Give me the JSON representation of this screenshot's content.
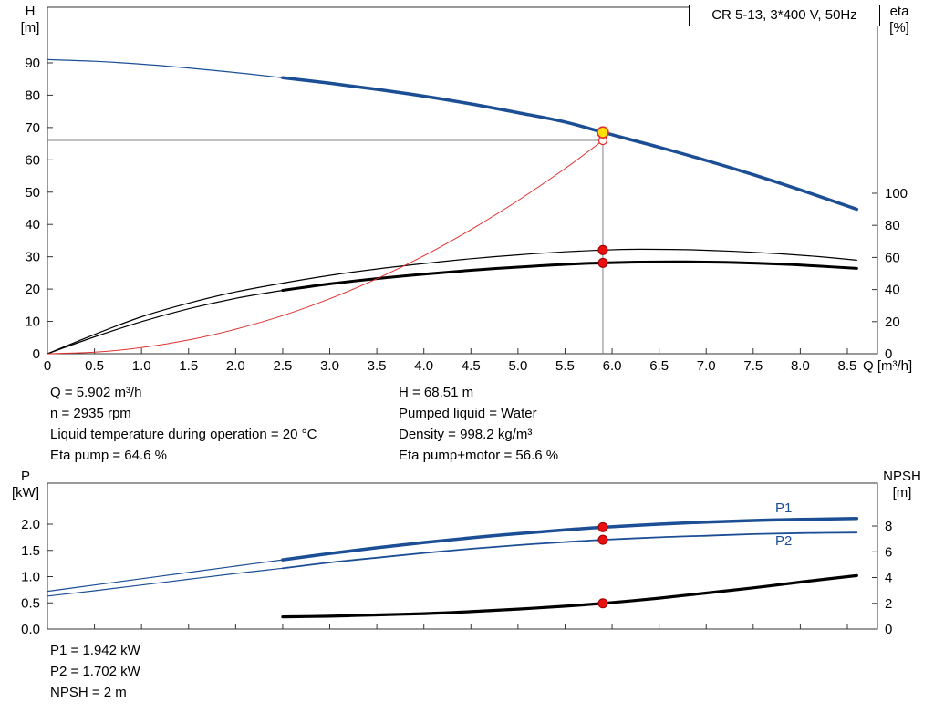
{
  "title_box": {
    "text": "CR 5-13, 3*400 V, 50Hz"
  },
  "labels": {
    "top_left_axis": [
      "H",
      "[m]"
    ],
    "top_right_axis": [
      "eta",
      "[%]"
    ],
    "x_axis": "Q [m³/h]",
    "bottom_left_axis": [
      "P",
      "[kW]"
    ],
    "bottom_right_axis": [
      "NPSH",
      "[m]"
    ],
    "p1": "P1",
    "p2": "P2"
  },
  "readout": {
    "top_left": [
      "Q = 5.902 m³/h",
      "n = 2935 rpm",
      "Liquid temperature during operation = 20 °C",
      "Eta pump = 64.6 %"
    ],
    "top_right": [
      "H = 68.51 m",
      "Pumped liquid = Water",
      "Density = 998.2 kg/m³",
      "Eta pump+motor = 56.6 %"
    ],
    "bottom": [
      "P1 = 1.942 kW",
      "P2 = 1.702 kW",
      "NPSH = 2 m"
    ]
  },
  "colors": {
    "curve_blue": "#1b4e94",
    "curve_black": "#000000",
    "load_red": "#e03030",
    "dot_red": "#e81010",
    "duty_yellow": "#ffe000",
    "crosshair_gray": "#808080"
  },
  "chart_data": [
    {
      "type": "line",
      "title": "CR 5-13, 3*400 V, 50Hz",
      "xlabel": "Q [m³/h]",
      "ylabel_left": "H [m]",
      "ylabel_right": "eta [%]",
      "xlim": [
        0,
        8.82
      ],
      "ylim_left": [
        0,
        107.2
      ],
      "ylim_right": [
        0,
        215.9
      ],
      "x_ticks": [
        0,
        0.5,
        1,
        1.5,
        2,
        2.5,
        3,
        3.5,
        4,
        4.5,
        5,
        5.5,
        6,
        6.5,
        7,
        7.5,
        8,
        8.5
      ],
      "x_tick_labels": [
        "0",
        "0.5",
        "1.0",
        "1.5",
        "2.0",
        "2.5",
        "3.0",
        "3.5",
        "4.0",
        "4.5",
        "5.0",
        "5.5",
        "6.0",
        "6.5",
        "7.0",
        "7.5",
        "8.0",
        "8.5"
      ],
      "y_left_ticks": [
        0,
        10,
        20,
        30,
        40,
        50,
        60,
        70,
        80,
        90
      ],
      "y_right_ticks": [
        0,
        20,
        40,
        60,
        80,
        100
      ],
      "grid": false,
      "series": [
        {
          "name": "head-curve-thin",
          "axis": "left",
          "color": "#1b4e94",
          "width": 1.2,
          "points": [
            [
              0,
              91
            ],
            [
              0.5,
              90.5
            ],
            [
              1,
              89.6
            ],
            [
              1.5,
              88.4
            ],
            [
              2,
              87
            ],
            [
              2.5,
              85.4
            ]
          ]
        },
        {
          "name": "head-curve",
          "axis": "left",
          "color": "#1b4e94",
          "width": 3.5,
          "points": [
            [
              2.5,
              85.4
            ],
            [
              3,
              83.7
            ],
            [
              3.5,
              81.8
            ],
            [
              4,
              79.7
            ],
            [
              4.5,
              77.3
            ],
            [
              5,
              74.6
            ],
            [
              5.5,
              71.7
            ],
            [
              5.902,
              68.51
            ],
            [
              6.5,
              63.9
            ],
            [
              7,
              59.8
            ],
            [
              7.5,
              55.4
            ],
            [
              8,
              50.7
            ],
            [
              8.6,
              44.7
            ]
          ]
        },
        {
          "name": "eta-pump-curve",
          "axis": "right",
          "color": "#000000",
          "width": 1.2,
          "points": [
            [
              0,
              0
            ],
            [
              0.5,
              12
            ],
            [
              1,
              23
            ],
            [
              1.5,
              31.5
            ],
            [
              2,
              38.5
            ],
            [
              2.5,
              44
            ],
            [
              3,
              48.8
            ],
            [
              3.5,
              52.8
            ],
            [
              4,
              56.2
            ],
            [
              4.5,
              59.2
            ],
            [
              5,
              61.6
            ],
            [
              5.5,
              63.5
            ],
            [
              5.902,
              64.6
            ],
            [
              6.3,
              65.1
            ],
            [
              6.8,
              64.8
            ],
            [
              7.3,
              63.8
            ],
            [
              7.8,
              62.2
            ],
            [
              8.2,
              60.5
            ],
            [
              8.6,
              58.3
            ]
          ]
        },
        {
          "name": "eta-pump-motor-thin",
          "axis": "right",
          "color": "#000000",
          "width": 1.2,
          "points": [
            [
              0,
              0
            ],
            [
              0.5,
              10.5
            ],
            [
              1,
              20
            ],
            [
              1.5,
              28
            ],
            [
              2,
              34.5
            ],
            [
              2.5,
              39.5
            ]
          ]
        },
        {
          "name": "eta-pump-motor-curve",
          "axis": "right",
          "color": "#000000",
          "width": 3,
          "points": [
            [
              2.5,
              39.5
            ],
            [
              3,
              43.5
            ],
            [
              3.5,
              46.8
            ],
            [
              4,
              49.6
            ],
            [
              4.5,
              52
            ],
            [
              5,
              54
            ],
            [
              5.5,
              55.7
            ],
            [
              5.902,
              56.6
            ],
            [
              6.3,
              57.1
            ],
            [
              6.8,
              57.2
            ],
            [
              7.3,
              56.8
            ],
            [
              7.8,
              55.8
            ],
            [
              8.2,
              54.6
            ],
            [
              8.6,
              53.2
            ]
          ]
        },
        {
          "name": "load-curve",
          "axis": "left",
          "color": "#e03030",
          "width": 1,
          "points": [
            [
              0,
              0
            ],
            [
              0.5,
              0.47
            ],
            [
              1,
              1.89
            ],
            [
              1.5,
              4.26
            ],
            [
              2,
              7.58
            ],
            [
              2.5,
              11.8
            ],
            [
              3,
              17
            ],
            [
              3.5,
              23.2
            ],
            [
              4,
              30.3
            ],
            [
              4.5,
              38.4
            ],
            [
              5,
              47.4
            ],
            [
              5.5,
              57.3
            ],
            [
              5.902,
              66
            ]
          ]
        }
      ],
      "crosshair": {
        "q": 5.902,
        "h": 66,
        "h_top": 68.51,
        "color": "#808080"
      },
      "markers": [
        {
          "name": "duty-point-open-circle",
          "q": 5.902,
          "v": 66,
          "axis": "left",
          "r": 4.5,
          "fill": "#ffffff",
          "stroke": "#e03030",
          "sw": 1.3
        },
        {
          "name": "duty-point",
          "q": 5.902,
          "v": 68.51,
          "axis": "left",
          "r": 6,
          "fill": "#ffe000",
          "stroke": "#e03030",
          "sw": 1.6
        },
        {
          "name": "eta-pump-point",
          "q": 5.902,
          "v": 64.6,
          "axis": "right",
          "r": 5,
          "fill": "#e81010",
          "stroke": "#990000",
          "sw": 1
        },
        {
          "name": "eta-pump-motor-point",
          "q": 5.902,
          "v": 56.6,
          "axis": "right",
          "r": 5,
          "fill": "#e81010",
          "stroke": "#990000",
          "sw": 1
        }
      ]
    },
    {
      "type": "line",
      "title": "",
      "xlabel": "",
      "ylabel_left": "P [kW]",
      "ylabel_right": "NPSH [m]",
      "xlim": [
        0,
        8.82
      ],
      "ylim_left": [
        0,
        2.783
      ],
      "ylim_right": [
        0,
        11.33
      ],
      "x_ticks": [
        0,
        0.5,
        1,
        1.5,
        2,
        2.5,
        3,
        3.5,
        4,
        4.5,
        5,
        5.5,
        6,
        6.5,
        7,
        7.5,
        8,
        8.5
      ],
      "y_left_ticks": [
        0,
        0.5,
        1,
        1.5,
        2
      ],
      "y_left_tick_labels": [
        "0.0",
        "0.5",
        "1.0",
        "1.5",
        "2.0"
      ],
      "y_right_ticks": [
        0,
        2,
        4,
        6,
        8
      ],
      "grid": false,
      "series": [
        {
          "name": "p1-curve-thin",
          "axis": "left",
          "color": "#1b4e94",
          "width": 1.2,
          "points": [
            [
              0,
              0.72
            ],
            [
              0.5,
              0.84
            ],
            [
              1,
              0.96
            ],
            [
              1.5,
              1.08
            ],
            [
              2,
              1.2
            ],
            [
              2.5,
              1.32
            ]
          ]
        },
        {
          "name": "p1-curve",
          "axis": "left",
          "color": "#1b4e94",
          "width": 3.5,
          "points": [
            [
              2.5,
              1.32
            ],
            [
              3,
              1.44
            ],
            [
              3.5,
              1.55
            ],
            [
              4,
              1.65
            ],
            [
              4.5,
              1.74
            ],
            [
              5,
              1.82
            ],
            [
              5.5,
              1.89
            ],
            [
              5.902,
              1.942
            ],
            [
              6.5,
              2.0
            ],
            [
              7,
              2.04
            ],
            [
              7.5,
              2.07
            ],
            [
              8,
              2.09
            ],
            [
              8.6,
              2.11
            ]
          ]
        },
        {
          "name": "p2-curve-thin",
          "axis": "left",
          "color": "#1b4e94",
          "width": 1.2,
          "points": [
            [
              0,
              0.63
            ],
            [
              0.5,
              0.73
            ],
            [
              1,
              0.84
            ],
            [
              1.5,
              0.95
            ],
            [
              2,
              1.06
            ],
            [
              2.5,
              1.16
            ]
          ]
        },
        {
          "name": "p2-curve",
          "axis": "left",
          "color": "#1b4e94",
          "width": 1.8,
          "points": [
            [
              2.5,
              1.16
            ],
            [
              3,
              1.27
            ],
            [
              3.5,
              1.36
            ],
            [
              4,
              1.45
            ],
            [
              4.5,
              1.53
            ],
            [
              5,
              1.6
            ],
            [
              5.5,
              1.66
            ],
            [
              5.902,
              1.702
            ],
            [
              6.5,
              1.75
            ],
            [
              7,
              1.78
            ],
            [
              7.5,
              1.81
            ],
            [
              8,
              1.83
            ],
            [
              8.6,
              1.84
            ]
          ]
        },
        {
          "name": "npsh-curve",
          "axis": "right",
          "color": "#000000",
          "width": 3.2,
          "points": [
            [
              2.5,
              0.95
            ],
            [
              3,
              1.0
            ],
            [
              3.5,
              1.1
            ],
            [
              4,
              1.2
            ],
            [
              4.5,
              1.35
            ],
            [
              5,
              1.55
            ],
            [
              5.5,
              1.78
            ],
            [
              5.902,
              2.0
            ],
            [
              6.5,
              2.4
            ],
            [
              7,
              2.8
            ],
            [
              7.5,
              3.2
            ],
            [
              8,
              3.65
            ],
            [
              8.6,
              4.15
            ]
          ]
        }
      ],
      "markers": [
        {
          "name": "p1-point",
          "q": 5.902,
          "v": 1.942,
          "axis": "left",
          "r": 5,
          "fill": "#e81010",
          "stroke": "#990000",
          "sw": 1
        },
        {
          "name": "p2-point",
          "q": 5.902,
          "v": 1.702,
          "axis": "left",
          "r": 5,
          "fill": "#e81010",
          "stroke": "#990000",
          "sw": 1
        },
        {
          "name": "npsh-point",
          "q": 5.902,
          "v": 2,
          "axis": "right",
          "r": 5,
          "fill": "#e81010",
          "stroke": "#990000",
          "sw": 1
        }
      ]
    }
  ]
}
